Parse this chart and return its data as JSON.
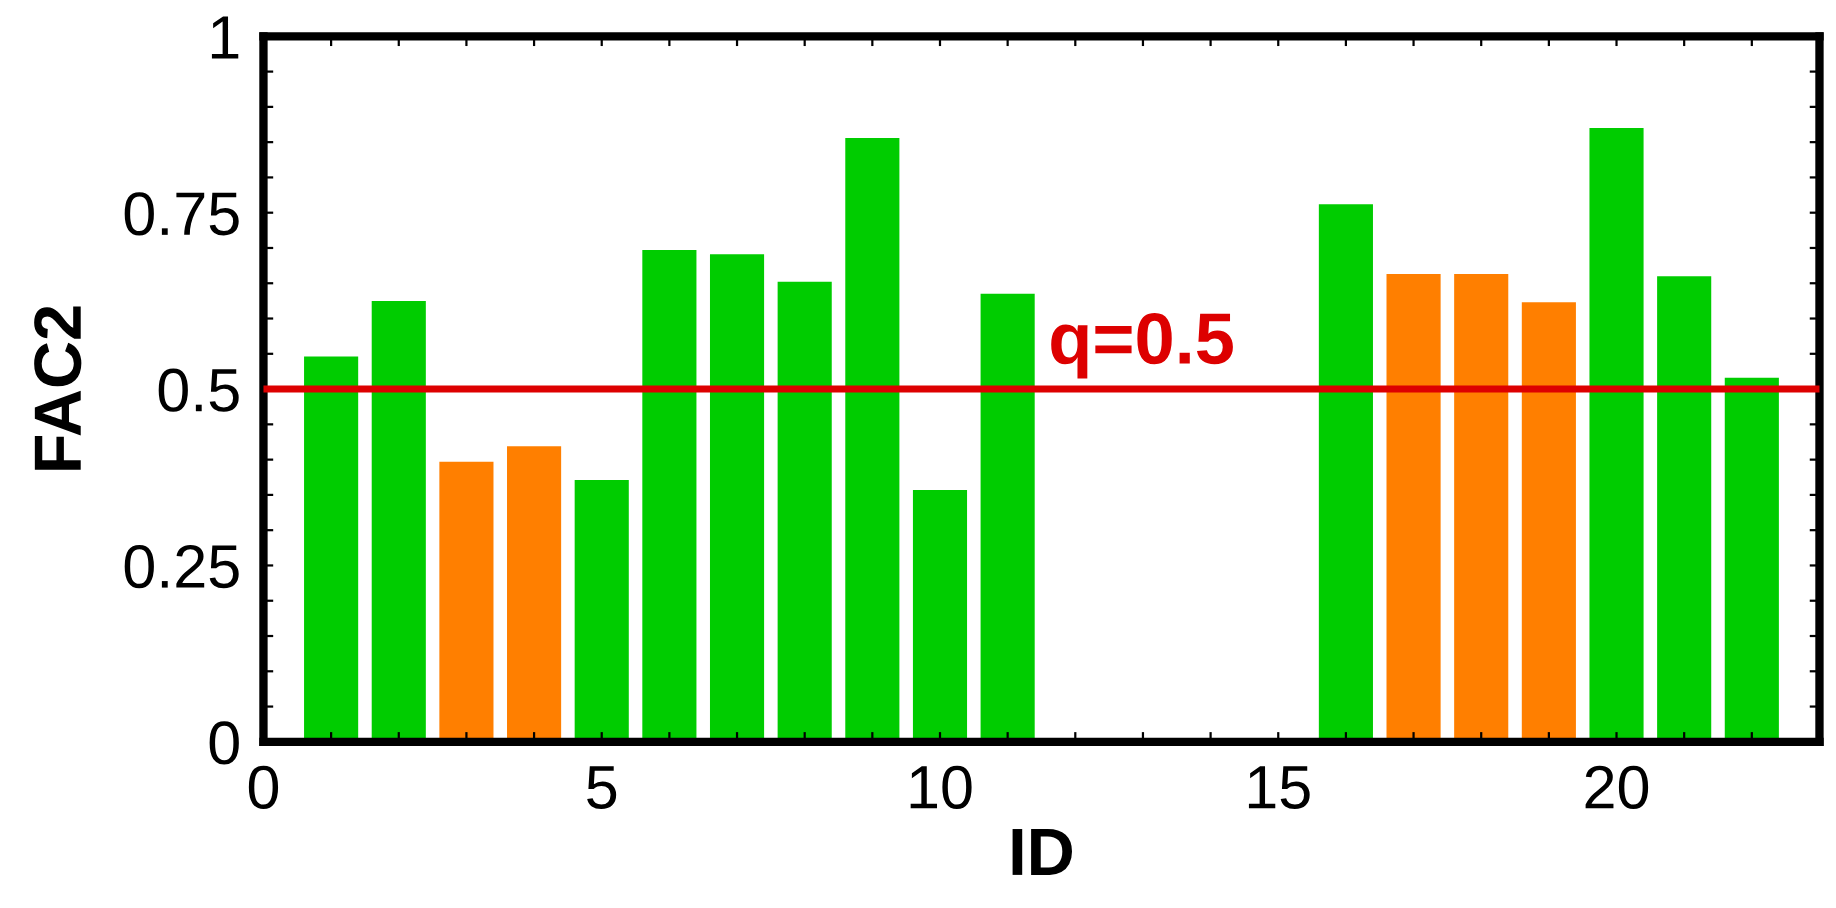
{
  "chart_data": {
    "type": "bar",
    "xlabel": "ID",
    "ylabel": "FAC2",
    "x": [
      1,
      2,
      3,
      4,
      5,
      6,
      7,
      8,
      9,
      10,
      11,
      12,
      13,
      14,
      15,
      16,
      17,
      18,
      19,
      20,
      21,
      22
    ],
    "values": [
      0.546,
      0.625,
      0.397,
      0.419,
      0.371,
      0.697,
      0.691,
      0.652,
      0.856,
      0.357,
      0.635,
      null,
      null,
      null,
      null,
      0.762,
      0.663,
      0.663,
      0.623,
      0.87,
      0.66,
      0.516
    ],
    "colors": [
      "#00cc00",
      "#00cc00",
      "#ff7f00",
      "#ff7f00",
      "#00cc00",
      "#00cc00",
      "#00cc00",
      "#00cc00",
      "#00cc00",
      "#00cc00",
      "#00cc00",
      null,
      null,
      null,
      null,
      "#00cc00",
      "#ff7f00",
      "#ff7f00",
      "#ff7f00",
      "#00cc00",
      "#00cc00",
      "#00cc00"
    ],
    "xlim": [
      0,
      23
    ],
    "xticks": [
      0,
      {
        "value": 1,
        "label": null
      },
      {
        "value": 2,
        "label": null
      },
      {
        "value": 3,
        "label": null
      },
      {
        "value": 4,
        "label": null
      },
      5,
      {
        "value": 6,
        "label": null
      },
      {
        "value": 7,
        "label": null
      },
      {
        "value": 8,
        "label": null
      },
      {
        "value": 9,
        "label": null
      },
      10,
      {
        "value": 11,
        "label": null
      },
      {
        "value": 12,
        "label": null
      },
      {
        "value": 13,
        "label": null
      },
      {
        "value": 14,
        "label": null
      },
      15,
      {
        "value": 16,
        "label": null
      },
      {
        "value": 17,
        "label": null
      },
      {
        "value": 18,
        "label": null
      },
      {
        "value": 19,
        "label": null
      },
      20,
      {
        "value": 21,
        "label": null
      },
      {
        "value": 22,
        "label": null
      }
    ],
    "ylim": [
      0,
      1
    ],
    "yticks": [
      0,
      {
        "value": 0.05,
        "label": null
      },
      {
        "value": 0.1,
        "label": null
      },
      {
        "value": 0.15,
        "label": null
      },
      {
        "value": 0.2,
        "label": null
      },
      0.25,
      {
        "value": 0.3,
        "label": null
      },
      {
        "value": 0.35,
        "label": null
      },
      {
        "value": 0.4,
        "label": null
      },
      {
        "value": 0.45,
        "label": null
      },
      0.5,
      {
        "value": 0.55,
        "label": null
      },
      {
        "value": 0.6,
        "label": null
      },
      {
        "value": 0.65,
        "label": null
      },
      {
        "value": 0.7,
        "label": null
      },
      0.75,
      {
        "value": 0.8,
        "label": null
      },
      {
        "value": 0.85,
        "label": null
      },
      {
        "value": 0.9,
        "label": null
      },
      {
        "value": 0.95,
        "label": null
      },
      1
    ],
    "ref_lines": [
      {
        "axis": "y",
        "value": 0.5,
        "label": "q=0.5",
        "color": "#dd0000"
      }
    ],
    "grid": false,
    "legend": false
  }
}
